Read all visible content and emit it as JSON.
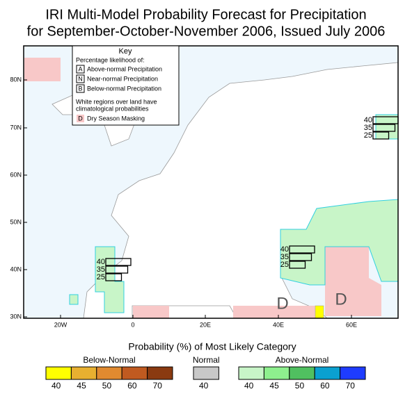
{
  "title": [
    "IRI Multi-Model Probability Forecast for Precipitation",
    "for September-October-November 2006, Issued July 2006"
  ],
  "map": {
    "lat_labels": [
      "80N",
      "70N",
      "60N",
      "50N",
      "40N",
      "30N"
    ],
    "lon_labels": [
      "20W",
      "0",
      "20E",
      "40E",
      "60E"
    ],
    "probability_boxes": [
      {
        "values": [
          40,
          35,
          25
        ]
      },
      {
        "values": [
          40,
          35,
          25
        ]
      },
      {
        "values": [
          40,
          35,
          25
        ]
      }
    ],
    "dry_season_labels": [
      "D",
      "D"
    ]
  },
  "key": {
    "title": "Key",
    "subtitle": "Percentage likelihood of:",
    "items": [
      {
        "letter": "A",
        "label": "Above-normal Precipitation"
      },
      {
        "letter": "N",
        "label": "Near-normal Precipitation"
      },
      {
        "letter": "B",
        "label": "Below-normal Precipitation"
      }
    ],
    "note": [
      "White regions over land have",
      "climatological probabilities"
    ],
    "dry": {
      "letter": "D",
      "label": "Dry Season Masking"
    }
  },
  "legend": {
    "title": "Probability (%) of Most Likely Category",
    "groups": [
      {
        "name": "Below-Normal",
        "colors": [
          "#ffff00",
          "#e8b030",
          "#e08a30",
          "#c05a20",
          "#8a3a10"
        ],
        "labels": [
          40,
          45,
          50,
          60,
          70
        ]
      },
      {
        "name": "Normal",
        "colors": [
          "#c8c8c8"
        ],
        "labels": [
          40
        ]
      },
      {
        "name": "Above-Normal",
        "colors": [
          "#c8f5c8",
          "#8ef08e",
          "#50c060",
          "#0aa0d0",
          "#1e3cff"
        ],
        "labels": [
          40,
          45,
          50,
          60,
          70
        ]
      }
    ]
  }
}
